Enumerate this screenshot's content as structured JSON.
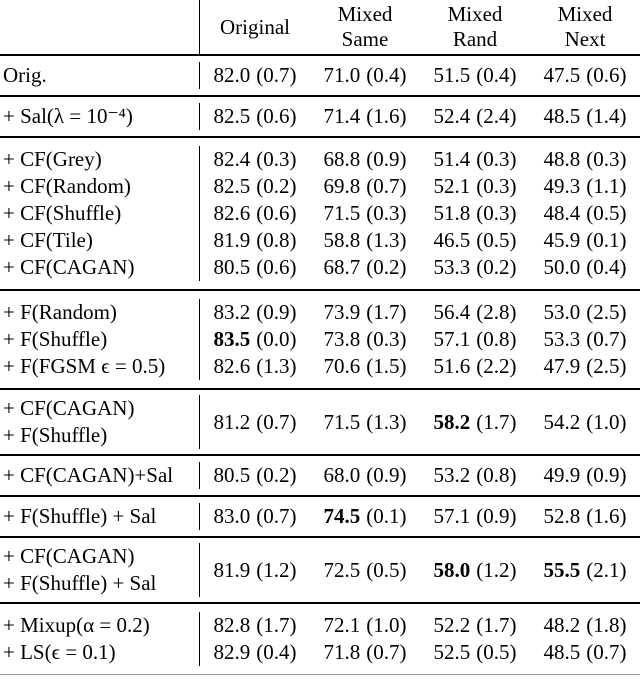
{
  "table": {
    "header": {
      "columns": [
        {
          "lines": [
            "Original"
          ]
        },
        {
          "lines": [
            "Mixed",
            "Same"
          ]
        },
        {
          "lines": [
            "Mixed",
            "Rand"
          ]
        },
        {
          "lines": [
            "Mixed",
            "Next"
          ]
        }
      ]
    },
    "groups": [
      {
        "rows": [
          {
            "label": [
              "Orig."
            ],
            "cells": [
              {
                "m": "82.0",
                "s": "(0.7)"
              },
              {
                "m": "71.0",
                "s": "(0.4)"
              },
              {
                "m": "51.5",
                "s": "(0.4)"
              },
              {
                "m": "47.5",
                "s": "(0.6)"
              }
            ]
          }
        ]
      },
      {
        "rows": [
          {
            "label": [
              "+ Sal(λ = 10⁻⁴)"
            ],
            "cells": [
              {
                "m": "82.5",
                "s": "(0.6)"
              },
              {
                "m": "71.4",
                "s": "(1.6)"
              },
              {
                "m": "52.4",
                "s": "(2.4)"
              },
              {
                "m": "48.5",
                "s": "(1.4)"
              }
            ]
          }
        ]
      },
      {
        "rows": [
          {
            "label": [
              "+ CF(Grey)"
            ],
            "cells": [
              {
                "m": "82.4",
                "s": "(0.3)"
              },
              {
                "m": "68.8",
                "s": "(0.9)"
              },
              {
                "m": "51.4",
                "s": "(0.3)"
              },
              {
                "m": "48.8",
                "s": "(0.3)"
              }
            ]
          },
          {
            "label": [
              "+ CF(Random)"
            ],
            "cells": [
              {
                "m": "82.5",
                "s": "(0.2)"
              },
              {
                "m": "69.8",
                "s": "(0.7)"
              },
              {
                "m": "52.1",
                "s": "(0.3)"
              },
              {
                "m": "49.3",
                "s": "(1.1)"
              }
            ]
          },
          {
            "label": [
              "+ CF(Shuffle)"
            ],
            "cells": [
              {
                "m": "82.6",
                "s": "(0.6)"
              },
              {
                "m": "71.5",
                "s": "(0.3)"
              },
              {
                "m": "51.8",
                "s": "(0.3)"
              },
              {
                "m": "48.4",
                "s": "(0.5)"
              }
            ]
          },
          {
            "label": [
              "+ CF(Tile)"
            ],
            "cells": [
              {
                "m": "81.9",
                "s": "(0.8)"
              },
              {
                "m": "58.8",
                "s": "(1.3)"
              },
              {
                "m": "46.5",
                "s": "(0.5)"
              },
              {
                "m": "45.9",
                "s": "(0.1)"
              }
            ]
          },
          {
            "label": [
              "+ CF(CAGAN)"
            ],
            "cells": [
              {
                "m": "80.5",
                "s": "(0.6)"
              },
              {
                "m": "68.7",
                "s": "(0.2)"
              },
              {
                "m": "53.3",
                "s": "(0.2)"
              },
              {
                "m": "50.0",
                "s": "(0.4)"
              }
            ]
          }
        ]
      },
      {
        "rows": [
          {
            "label": [
              "+ F(Random)"
            ],
            "cells": [
              {
                "m": "83.2",
                "s": "(0.9)"
              },
              {
                "m": "73.9",
                "s": "(1.7)"
              },
              {
                "m": "56.4",
                "s": "(2.8)"
              },
              {
                "m": "53.0",
                "s": "(2.5)"
              }
            ]
          },
          {
            "label": [
              "+ F(Shuffle)"
            ],
            "cells": [
              {
                "m": "83.5",
                "s": "(0.0)",
                "b": true
              },
              {
                "m": "73.8",
                "s": "(0.3)"
              },
              {
                "m": "57.1",
                "s": "(0.8)"
              },
              {
                "m": "53.3",
                "s": "(0.7)"
              }
            ]
          },
          {
            "label": [
              "+ F(FGSM ϵ = 0.5)"
            ],
            "cells": [
              {
                "m": "82.6",
                "s": "(1.3)"
              },
              {
                "m": "70.6",
                "s": "(1.5)"
              },
              {
                "m": "51.6",
                "s": "(2.2)"
              },
              {
                "m": "47.9",
                "s": "(2.5)"
              }
            ]
          }
        ]
      },
      {
        "rows": [
          {
            "label": [
              "+ CF(CAGAN)",
              "+ F(Shuffle)"
            ],
            "cells": [
              {
                "m": "81.2",
                "s": "(0.7)"
              },
              {
                "m": "71.5",
                "s": "(1.3)"
              },
              {
                "m": "58.2",
                "s": "(1.7)",
                "b": true
              },
              {
                "m": "54.2",
                "s": "(1.0)"
              }
            ]
          }
        ]
      },
      {
        "rows": [
          {
            "label": [
              "+ CF(CAGAN)+Sal"
            ],
            "cells": [
              {
                "m": "80.5",
                "s": "(0.2)"
              },
              {
                "m": "68.0",
                "s": "(0.9)"
              },
              {
                "m": "53.2",
                "s": "(0.8)"
              },
              {
                "m": "49.9",
                "s": "(0.9)"
              }
            ]
          }
        ]
      },
      {
        "rows": [
          {
            "label": [
              "+ F(Shuffle) + Sal"
            ],
            "cells": [
              {
                "m": "83.0",
                "s": "(0.7)"
              },
              {
                "m": "74.5",
                "s": "(0.1)",
                "b": true
              },
              {
                "m": "57.1",
                "s": "(0.9)"
              },
              {
                "m": "52.8",
                "s": "(1.6)"
              }
            ]
          }
        ]
      },
      {
        "rows": [
          {
            "label": [
              "+ CF(CAGAN)",
              "+ F(Shuffle) + Sal"
            ],
            "cells": [
              {
                "m": "81.9",
                "s": "(1.2)"
              },
              {
                "m": "72.5",
                "s": "(0.5)"
              },
              {
                "m": "58.0",
                "s": "(1.2)",
                "b": true
              },
              {
                "m": "55.5",
                "s": "(2.1)",
                "b": true
              }
            ]
          }
        ]
      },
      {
        "rows": [
          {
            "label": [
              "+ Mixup(α = 0.2)"
            ],
            "cells": [
              {
                "m": "82.8",
                "s": "(1.7)"
              },
              {
                "m": "72.1",
                "s": "(1.0)"
              },
              {
                "m": "52.2",
                "s": "(1.7)"
              },
              {
                "m": "48.2",
                "s": "(1.8)"
              }
            ]
          },
          {
            "label": [
              "+ LS(ϵ = 0.1)"
            ],
            "cells": [
              {
                "m": "82.9",
                "s": "(0.4)"
              },
              {
                "m": "71.8",
                "s": "(0.7)"
              },
              {
                "m": "52.5",
                "s": "(0.5)"
              },
              {
                "m": "48.5",
                "s": "(0.7)"
              }
            ]
          }
        ]
      }
    ]
  }
}
